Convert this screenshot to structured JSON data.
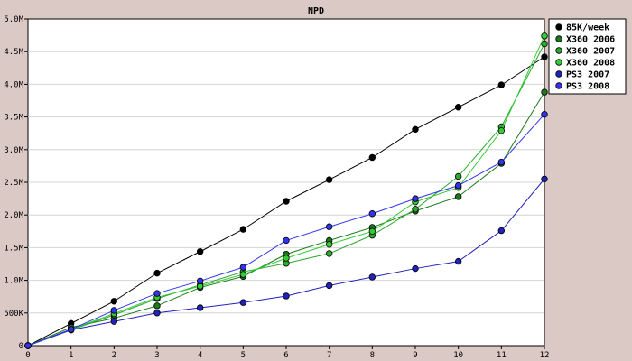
{
  "chart_data": {
    "type": "line",
    "title": "NPD",
    "xlabel": "",
    "ylabel": "",
    "x": [
      0,
      1,
      2,
      3,
      4,
      5,
      6,
      7,
      8,
      9,
      10,
      11,
      12
    ],
    "xlim": [
      0,
      12
    ],
    "ylim": [
      0,
      5000000
    ],
    "yticks": [
      {
        "value": 0,
        "label": "0"
      },
      {
        "value": 500000,
        "label": "500K"
      },
      {
        "value": 1000000,
        "label": "1.0M"
      },
      {
        "value": 1500000,
        "label": "1.5M"
      },
      {
        "value": 2000000,
        "label": "2.0M"
      },
      {
        "value": 2500000,
        "label": "2.5M"
      },
      {
        "value": 3000000,
        "label": "3.0M"
      },
      {
        "value": 3500000,
        "label": "3.5M"
      },
      {
        "value": 4000000,
        "label": "4.0M"
      },
      {
        "value": 4500000,
        "label": "4.5M"
      },
      {
        "value": 5000000,
        "label": "5.0M"
      }
    ],
    "grid": true,
    "legend_position": "top-right",
    "series": [
      {
        "name": "85K/week",
        "color": "#000000",
        "values": [
          0,
          340000,
          680000,
          1110000,
          1440000,
          1780000,
          2210000,
          2540000,
          2880000,
          3310000,
          3650000,
          3990000,
          4420000
        ]
      },
      {
        "name": "X360 2006",
        "color": "#1a7a1a",
        "values": [
          0,
          280000,
          420000,
          610000,
          890000,
          1060000,
          1400000,
          1610000,
          1810000,
          2060000,
          2280000,
          2790000,
          3880000
        ]
      },
      {
        "name": "X360 2007",
        "color": "#2ea82e",
        "values": [
          0,
          240000,
          470000,
          720000,
          930000,
          1130000,
          1260000,
          1410000,
          1690000,
          2090000,
          2590000,
          3350000,
          4620000
        ]
      },
      {
        "name": "X360 2008",
        "color": "#33cc33",
        "values": [
          0,
          250000,
          490000,
          740000,
          910000,
          1090000,
          1340000,
          1550000,
          1750000,
          2200000,
          2420000,
          3290000,
          4740000
        ]
      },
      {
        "name": "PS3 2007",
        "color": "#2222bb",
        "values": [
          0,
          240000,
          370000,
          500000,
          580000,
          660000,
          760000,
          920000,
          1050000,
          1180000,
          1290000,
          1760000,
          2550000
        ]
      },
      {
        "name": "PS3 2008",
        "color": "#3333ee",
        "values": [
          0,
          250000,
          540000,
          800000,
          990000,
          1200000,
          1610000,
          1820000,
          2020000,
          2250000,
          2450000,
          2810000,
          3540000
        ]
      }
    ]
  }
}
